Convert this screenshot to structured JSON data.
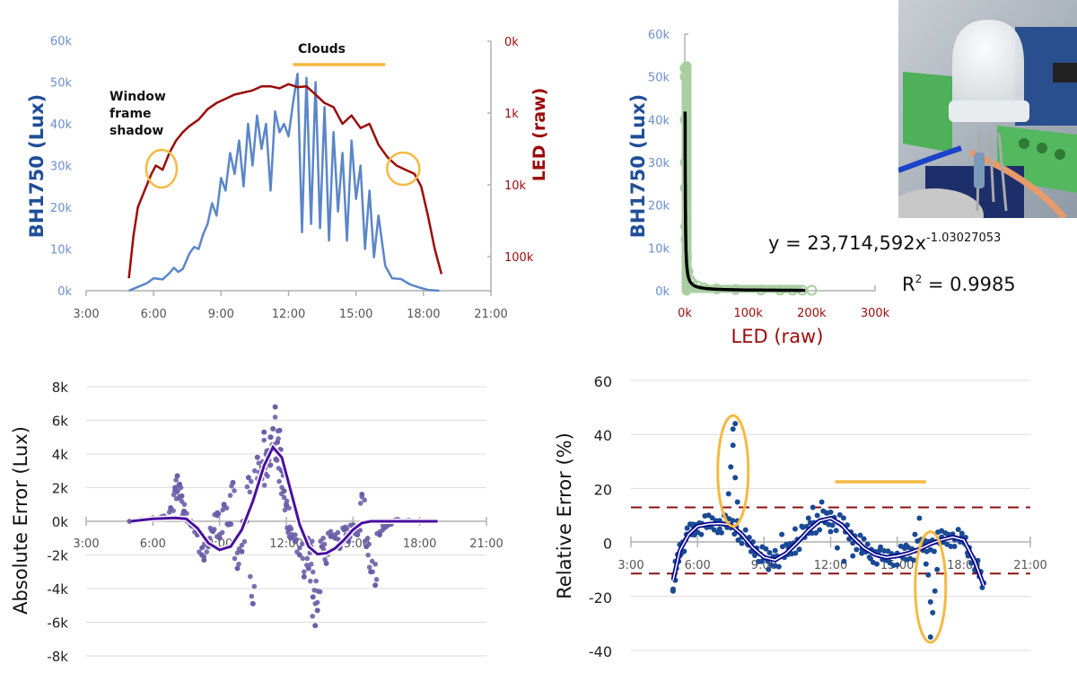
{
  "chart_data": [
    {
      "id": "lux-led-timeseries",
      "type": "line",
      "title": "",
      "xlabel": "",
      "ylabel": "BH1750 (Lux)",
      "y2label": "LED (raw)",
      "x_ticks": [
        "3:00",
        "6:00",
        "9:00",
        "12:00",
        "15:00",
        "18:00",
        "21:00"
      ],
      "x_range_hours": [
        3,
        21
      ],
      "y_ticks": [
        "0k",
        "10k",
        "20k",
        "30k",
        "40k",
        "50k",
        "60k"
      ],
      "ylim": [
        0,
        60000
      ],
      "y2_ticks": [
        "0k",
        "1k",
        "10k",
        "100k"
      ],
      "y2_scale": "log, inverted",
      "colors": {
        "lux": "#5b86c8",
        "led": "#9b0b0b",
        "annotation": "#f5b942",
        "axis": "#b0b0b0",
        "ylabel": "#1f4e96",
        "ytick": "#6b8fcf",
        "y2tick": "#9b0b0b"
      },
      "annotations": [
        {
          "text": "Window frame shadow",
          "lines": [
            "Window",
            "frame",
            "shadow"
          ],
          "circle_at_hour": 6.35
        },
        {
          "text": "Clouds",
          "bar_hours": [
            12.2,
            16.3
          ]
        },
        {
          "text": "",
          "circle_at_hour": 17.1
        }
      ],
      "series": [
        {
          "name": "BH1750 (Lux)",
          "axis": "left",
          "x": [
            4.9,
            5.3,
            5.7,
            6.0,
            6.4,
            6.7,
            6.9,
            7.1,
            7.3,
            7.6,
            7.8,
            8.0,
            8.2,
            8.4,
            8.6,
            8.8,
            9.0,
            9.2,
            9.4,
            9.6,
            9.8,
            10.0,
            10.2,
            10.4,
            10.6,
            10.8,
            11.0,
            11.2,
            11.4,
            11.6,
            11.8,
            12.0,
            12.2,
            12.4,
            12.6,
            12.8,
            13.0,
            13.2,
            13.4,
            13.6,
            13.8,
            14.0,
            14.2,
            14.4,
            14.6,
            14.8,
            15.0,
            15.2,
            15.4,
            15.6,
            15.8,
            16.0,
            16.3,
            16.6,
            17.0,
            17.4,
            17.8,
            18.2,
            18.7
          ],
          "y": [
            0,
            900,
            1800,
            3000,
            2700,
            4200,
            5500,
            4500,
            5200,
            9000,
            10500,
            10000,
            13500,
            16000,
            21000,
            18000,
            27000,
            24000,
            33000,
            28000,
            36000,
            25000,
            40000,
            30000,
            42000,
            34000,
            40000,
            24000,
            43000,
            38000,
            40000,
            37000,
            45000,
            52000,
            14000,
            51000,
            16000,
            50000,
            15000,
            44000,
            12000,
            38000,
            19000,
            33000,
            12000,
            36000,
            22000,
            30000,
            10000,
            24000,
            8000,
            18000,
            6000,
            3000,
            2800,
            1500,
            800,
            200,
            0
          ]
        },
        {
          "name": "LED (raw)",
          "axis": "right",
          "x": [
            4.9,
            5.1,
            5.3,
            5.6,
            5.9,
            6.1,
            6.4,
            6.7,
            7.0,
            7.3,
            7.6,
            8.0,
            8.4,
            8.8,
            9.2,
            9.6,
            10.0,
            10.4,
            10.8,
            11.2,
            11.6,
            12.0,
            12.4,
            12.8,
            13.2,
            13.6,
            14.0,
            14.4,
            14.8,
            15.2,
            15.6,
            16.0,
            16.4,
            16.8,
            17.2,
            17.6,
            17.9,
            18.2,
            18.5,
            18.8
          ],
          "y_lux_equivalent": [
            3000,
            13000,
            20000,
            24000,
            28000,
            30000,
            29000,
            33000,
            36000,
            38000,
            39500,
            41000,
            43500,
            45000,
            46000,
            47000,
            47500,
            48000,
            49000,
            49000,
            48500,
            49500,
            48800,
            49000,
            47000,
            45000,
            44000,
            40000,
            42000,
            39000,
            40000,
            35000,
            32000,
            30000,
            29000,
            28000,
            25000,
            18000,
            10000,
            4000
          ]
        }
      ]
    },
    {
      "id": "lux-vs-led-fit",
      "type": "scatter",
      "title": "",
      "xlabel": "LED (raw)",
      "ylabel": "BH1750 (Lux)",
      "x_ticks": [
        "0k",
        "100k",
        "200k",
        "300k"
      ],
      "xlim": [
        0,
        300000
      ],
      "y_ticks": [
        "0k",
        "10k",
        "20k",
        "30k",
        "40k",
        "50k",
        "60k"
      ],
      "ylim": [
        0,
        60000
      ],
      "equation": "y = 23,714,592x",
      "equation_exponent": "-1.03027053",
      "r_squared_label": "R",
      "r_squared_sup": "2",
      "r_squared_value": " = 0.9985",
      "fit": {
        "a": 23714592,
        "b": -1.03027053,
        "r2": 0.9985
      },
      "colors": {
        "points": "#a9cfa0",
        "fit": "#000000",
        "ylabel": "#1f4e96",
        "ytick": "#6b8fcf",
        "xlabel": "#9b0b0b",
        "xtick": "#9b0b0b"
      },
      "points_x": [
        455,
        500,
        600,
        800,
        1000,
        1500,
        2000,
        3000,
        5000,
        8000,
        12000,
        20000,
        30000,
        50000,
        80000,
        120000,
        150000,
        170000,
        185000,
        200000
      ],
      "points_y": [
        52000,
        50000,
        40000,
        30000,
        24000,
        15000,
        12000,
        8000,
        4500,
        2600,
        1800,
        1100,
        700,
        420,
        280,
        180,
        150,
        130,
        120,
        110
      ]
    },
    {
      "id": "absolute-error",
      "type": "scatter",
      "title": "",
      "xlabel": "",
      "ylabel": "Absolute Error (Lux)",
      "x_ticks": [
        "3:00",
        "6:00",
        "9:00",
        "12:00",
        "15:00",
        "18:00",
        "21:00"
      ],
      "x_range_hours": [
        3,
        21
      ],
      "y_ticks": [
        "8k",
        "6k",
        "4k",
        "2k",
        "0k",
        "-2k",
        "-4k",
        "-6k",
        "-8k"
      ],
      "ylim": [
        -8000,
        8000
      ],
      "grid": true,
      "colors": {
        "points": "#6b5fa8",
        "trend": "#4b0fa0",
        "grid": "#dcdcdc"
      },
      "points_x": [
        5.0,
        5.5,
        6.0,
        6.5,
        6.8,
        7.0,
        7.1,
        7.2,
        7.3,
        7.4,
        7.6,
        7.8,
        8.0,
        8.2,
        8.3,
        8.5,
        8.7,
        8.9,
        9.0,
        9.2,
        9.4,
        9.6,
        9.8,
        10.0,
        10.1,
        10.3,
        10.5,
        10.7,
        10.9,
        11.0,
        11.1,
        11.2,
        11.3,
        11.4,
        11.5,
        11.6,
        11.7,
        11.8,
        11.9,
        12.0,
        12.1,
        12.2,
        12.4,
        12.6,
        12.8,
        13.0,
        13.1,
        13.2,
        13.3,
        13.4,
        13.6,
        13.8,
        14.0,
        14.2,
        14.4,
        14.6,
        14.8,
        15.0,
        15.2,
        15.4,
        15.6,
        15.8,
        16.0,
        16.2,
        16.4,
        16.6,
        17.0,
        17.5,
        18.0,
        18.5
      ],
      "points_y": [
        0,
        100,
        200,
        300,
        800,
        2000,
        2700,
        2200,
        1500,
        600,
        0,
        -300,
        -800,
        -2000,
        -2300,
        -1500,
        -600,
        500,
        -1000,
        1000,
        -200,
        2300,
        -2800,
        -1800,
        0,
        2600,
        -4900,
        3800,
        3200,
        5300,
        4000,
        4200,
        5000,
        5500,
        6800,
        4700,
        5400,
        3000,
        1800,
        1000,
        -500,
        -1000,
        -1200,
        -2000,
        -3300,
        -2800,
        -1500,
        -4500,
        -6200,
        -5300,
        -1500,
        -2500,
        -900,
        -1000,
        -1600,
        -500,
        -1200,
        -300,
        -800,
        1600,
        -1500,
        -3000,
        -3800,
        -800,
        -400,
        -200,
        100,
        50,
        0,
        0
      ],
      "trend_x": [
        5.0,
        6.0,
        7.0,
        7.5,
        8.0,
        8.5,
        9.0,
        9.5,
        10.0,
        10.5,
        11.0,
        11.4,
        11.8,
        12.2,
        12.6,
        13.0,
        13.4,
        13.8,
        14.2,
        14.6,
        15.0,
        15.4,
        15.8,
        16.2,
        17.0,
        18.0,
        18.8
      ],
      "trend_y": [
        0,
        150,
        200,
        150,
        -400,
        -1300,
        -1700,
        -1500,
        -500,
        1200,
        3300,
        4400,
        3800,
        1800,
        -200,
        -1500,
        -1950,
        -1900,
        -1600,
        -1100,
        -500,
        -100,
        0,
        0,
        0,
        0,
        0
      ]
    },
    {
      "id": "relative-error",
      "type": "scatter",
      "title": "",
      "xlabel": "",
      "ylabel": "Relative Error (%)",
      "x_ticks": [
        "3:00",
        "6:00",
        "9:00",
        "12:00",
        "15:00",
        "18:00",
        "21:00"
      ],
      "x_range_hours": [
        3,
        21
      ],
      "y_ticks": [
        "60",
        "40",
        "20",
        "0",
        "-20",
        "-40"
      ],
      "ylim": [
        -40,
        60
      ],
      "grid": true,
      "threshold_lines": [
        13,
        -11.5
      ],
      "clouds_bar_hours": [
        12.2,
        16.3
      ],
      "circled_regions": [
        {
          "hour": 7.6,
          "range": [
            8,
            45
          ]
        },
        {
          "hour": 16.5,
          "range": [
            -35,
            2
          ]
        }
      ],
      "colors": {
        "points": "#1a4a94",
        "trend": "#0a0a90",
        "threshold": "#8b1010",
        "annotation": "#f5b942",
        "grid": "#dcdcdc"
      },
      "points_x": [
        4.9,
        5.0,
        5.2,
        5.5,
        5.8,
        6.2,
        6.6,
        7.0,
        7.2,
        7.4,
        7.5,
        7.6,
        7.6,
        7.7,
        7.7,
        7.8,
        7.8,
        8.0,
        8.3,
        8.6,
        8.9,
        9.2,
        9.5,
        9.8,
        10.1,
        10.4,
        10.7,
        11.0,
        11.2,
        11.4,
        11.6,
        11.8,
        12.0,
        12.3,
        12.6,
        13.0,
        13.4,
        13.8,
        14.2,
        14.6,
        15.0,
        15.4,
        15.8,
        16.0,
        16.2,
        16.3,
        16.4,
        16.5,
        16.5,
        16.6,
        16.7,
        16.8,
        17.0,
        17.3,
        17.6,
        17.9,
        18.2,
        18.5,
        18.9
      ],
      "points_y": [
        -18,
        -14,
        -5,
        3,
        6,
        7,
        6,
        5,
        10,
        18,
        28,
        36,
        42,
        44,
        24,
        15,
        8,
        2,
        -1,
        -4,
        -7,
        -10,
        -3,
        3,
        -2,
        5,
        6,
        9,
        13,
        10,
        15,
        11,
        4,
        -2,
        -7,
        -5,
        -4,
        -6,
        -3,
        -6,
        -4,
        -1,
        3,
        9,
        0,
        -8,
        -12,
        -22,
        -35,
        -26,
        -18,
        -10,
        2,
        3,
        1,
        2,
        -5,
        -10,
        -15
      ],
      "trend_x": [
        4.9,
        5.2,
        5.6,
        6.0,
        6.5,
        7.0,
        7.5,
        8.0,
        8.5,
        9.0,
        9.5,
        10.0,
        10.5,
        11.0,
        11.5,
        12.0,
        12.5,
        13.0,
        13.5,
        14.0,
        14.5,
        15.0,
        15.5,
        16.0,
        16.5,
        17.0,
        17.5,
        18.0,
        18.5,
        18.9
      ],
      "trend_y": [
        -14,
        -3,
        3,
        6,
        6.8,
        7,
        6.5,
        3,
        -2,
        -5.5,
        -6.5,
        -4,
        0,
        4.5,
        8,
        9,
        6.5,
        2,
        -2,
        -4.5,
        -5.5,
        -5,
        -4,
        -2.5,
        -0.5,
        1,
        2,
        1,
        -7,
        -16
      ]
    }
  ]
}
